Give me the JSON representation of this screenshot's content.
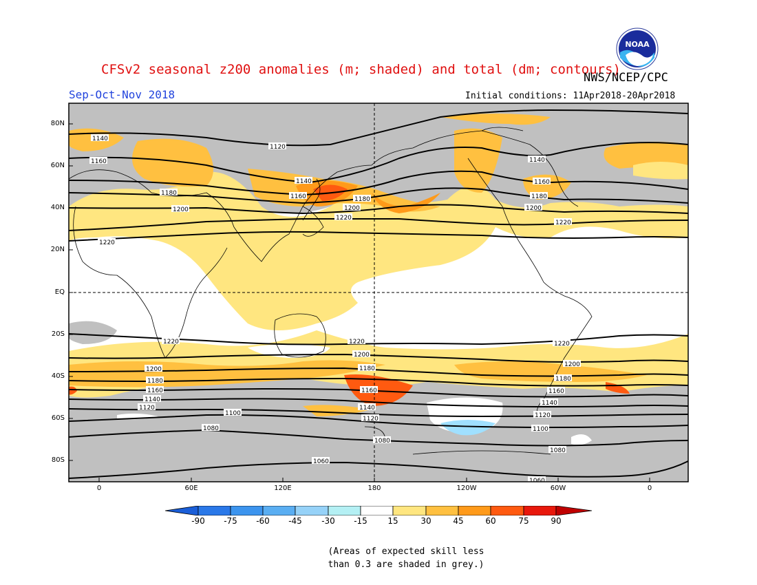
{
  "header": {
    "title": "CFSv2 seasonal z200 anomalies (m; shaded) and total (dm; contours)",
    "agency": "NWS/NCEP/CPC",
    "period": "Sep-Oct-Nov 2018",
    "initial_conditions": "Initial conditions: 11Apr2018-20Apr2018",
    "logo_text": "NOAA"
  },
  "map": {
    "lat_labels": [
      "80N",
      "60N",
      "40N",
      "20N",
      "EQ",
      "20S",
      "40S",
      "60S",
      "80S"
    ],
    "lon_labels": [
      "0",
      "60E",
      "120E",
      "180",
      "120W",
      "60W",
      "0"
    ],
    "contour_labels": [
      "1140",
      "1120",
      "1160",
      "1180",
      "1200",
      "1220",
      "1140",
      "1160",
      "1180",
      "1200",
      "1220",
      "1140",
      "1160",
      "1180",
      "1200",
      "1220",
      "1220",
      "1220",
      "1220",
      "1200",
      "1200",
      "1200",
      "1180",
      "1180",
      "1180",
      "1160",
      "1160",
      "1160",
      "1140",
      "1140",
      "1140",
      "1120",
      "1120",
      "1120",
      "1100",
      "1100",
      "1080",
      "1080",
      "1080",
      "1060",
      "1060"
    ],
    "colors": {
      "grey_skill": "#c0c0c0",
      "pale_yellow": "#ffe680",
      "light_orange": "#ffc040",
      "orange": "#ff9a1a",
      "red_orange": "#ff5a10",
      "light_blue": "#a0e0ff",
      "sky_blue": "#70c0ff"
    }
  },
  "colorbar": {
    "ticks": [
      "-90",
      "-75",
      "-60",
      "-45",
      "-30",
      "-15",
      "15",
      "30",
      "45",
      "60",
      "75",
      "90"
    ],
    "colors": [
      "#1a5ed8",
      "#2a78e8",
      "#3c94ee",
      "#5aaef2",
      "#96d2f8",
      "#b4f0f4",
      "#ffffff",
      "#ffe680",
      "#ffc040",
      "#ff9a1a",
      "#ff5a10",
      "#e8180c",
      "#c00000"
    ]
  },
  "note": {
    "line1": "(Areas of expected skill less",
    "line2": "than 0.3 are shaded in grey.)"
  }
}
